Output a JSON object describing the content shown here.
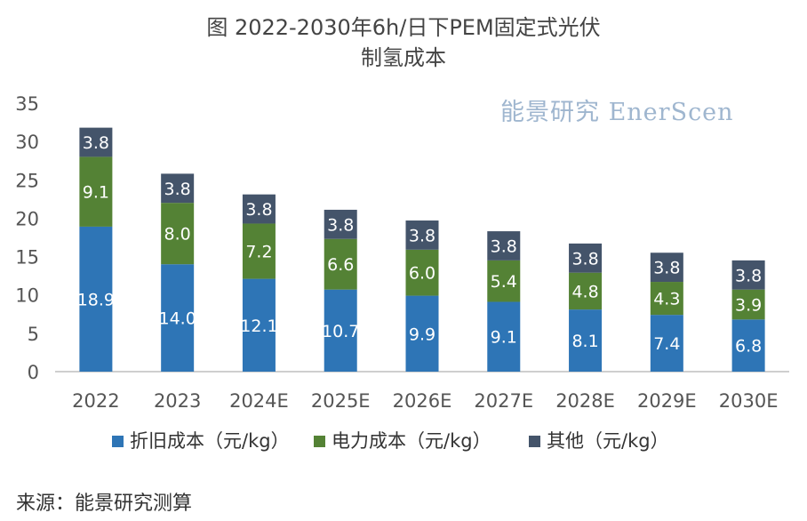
{
  "title_line1": "图  2022-2030年6h/日下PEM固定式光伏",
  "title_line2": "制氢成本",
  "watermark": "能景研究 EnerScen",
  "source": "来源：能景研究测算",
  "chart_data": {
    "type": "bar",
    "stacked": true,
    "categories": [
      "2022",
      "2023",
      "2024E",
      "2025E",
      "2026E",
      "2027E",
      "2028E",
      "2029E",
      "2030E"
    ],
    "series": [
      {
        "name": "折旧成本（元/kg）",
        "color": "#2e75b6",
        "values": [
          18.9,
          14.0,
          12.1,
          10.7,
          9.9,
          9.1,
          8.1,
          7.4,
          6.8
        ]
      },
      {
        "name": "电力成本（元/kg）",
        "color": "#548235",
        "values": [
          9.1,
          8.0,
          7.2,
          6.6,
          6.0,
          5.4,
          4.8,
          4.3,
          3.9
        ]
      },
      {
        "name": "其他（元/kg）",
        "color": "#44546a",
        "values": [
          3.8,
          3.8,
          3.8,
          3.8,
          3.8,
          3.8,
          3.8,
          3.8,
          3.8
        ]
      }
    ],
    "ylim": [
      0,
      35
    ],
    "yticks": [
      0,
      5,
      10,
      15,
      20,
      25,
      30,
      35
    ],
    "legend_position": "bottom",
    "grid": false
  }
}
